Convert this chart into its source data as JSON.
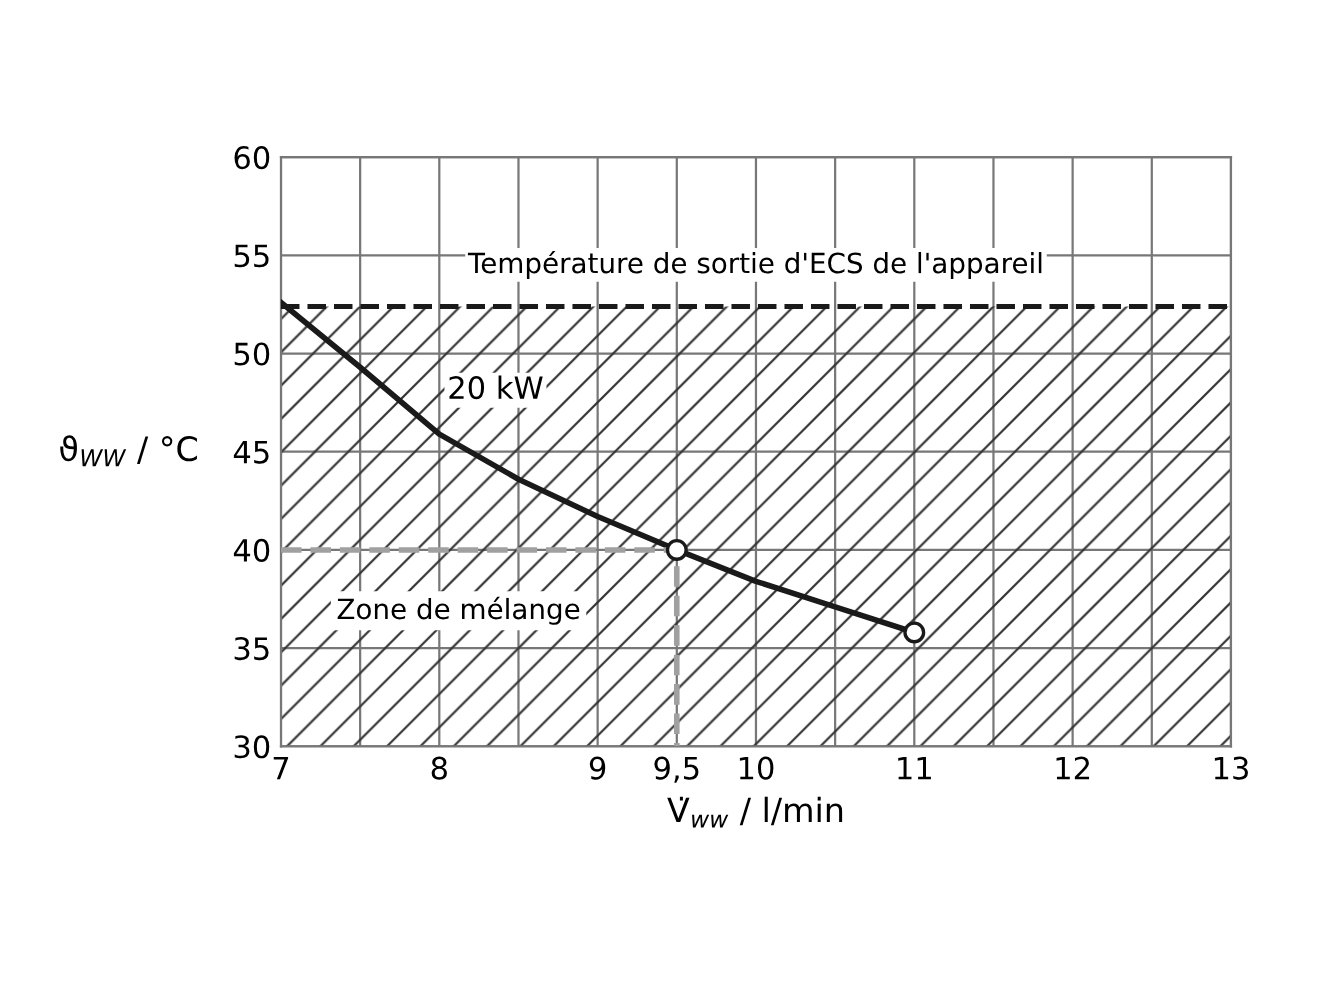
{
  "chart_data": {
    "type": "line",
    "xlabel": "V̇$_{ww}$ / l/min",
    "ylabel": "ϑ$_{WW}$ / °C",
    "series": [
      {
        "name": "20 kW",
        "color": "#1a1a1a",
        "x": [
          7.0,
          7.5,
          8.0,
          8.5,
          9.0,
          9.5,
          10.0,
          10.5,
          11.0
        ],
        "values": [
          52.6,
          49.3,
          45.9,
          43.6,
          41.7,
          40.0,
          38.4,
          37.1,
          35.8
        ]
      },
      {
        "type": "scatter",
        "color": "#1a1a1a",
        "marker": "circle",
        "x": [
          9.5,
          11.0
        ],
        "values": [
          40.0,
          35.8
        ]
      },
      {
        "color": "#a0a0a0",
        "line_style": "dashed",
        "x": [
          7.0,
          9.5,
          9.5
        ],
        "values": [
          40.0,
          40.0,
          30.0
        ]
      }
    ],
    "xlim": [
      7,
      13
    ],
    "ylim": [
      30,
      60
    ],
    "xticks": [
      7,
      {
        "value": 7.5,
        "label": null
      },
      8,
      {
        "value": 8.5,
        "label": null
      },
      9,
      {
        "value": 9.5,
        "label": "9,5"
      },
      10,
      {
        "value": 10.5,
        "label": null
      },
      11,
      {
        "value": 11.5,
        "label": null
      },
      12,
      {
        "value": 12.5,
        "label": null
      },
      13
    ],
    "yticks": [
      30,
      35,
      40,
      45,
      50,
      55,
      60
    ],
    "grid": true,
    "legend": false,
    "ref_lines": [
      {
        "axis": "y",
        "value": 52.4,
        "label": "Température de sortie d'ECS de l'appareil",
        "color": "#1a1a1a",
        "line_style": "dashed"
      }
    ],
    "bands": [
      {
        "axis": "y",
        "from": 30,
        "to": 52.4,
        "label": "Zone de mélange"
      }
    ]
  }
}
